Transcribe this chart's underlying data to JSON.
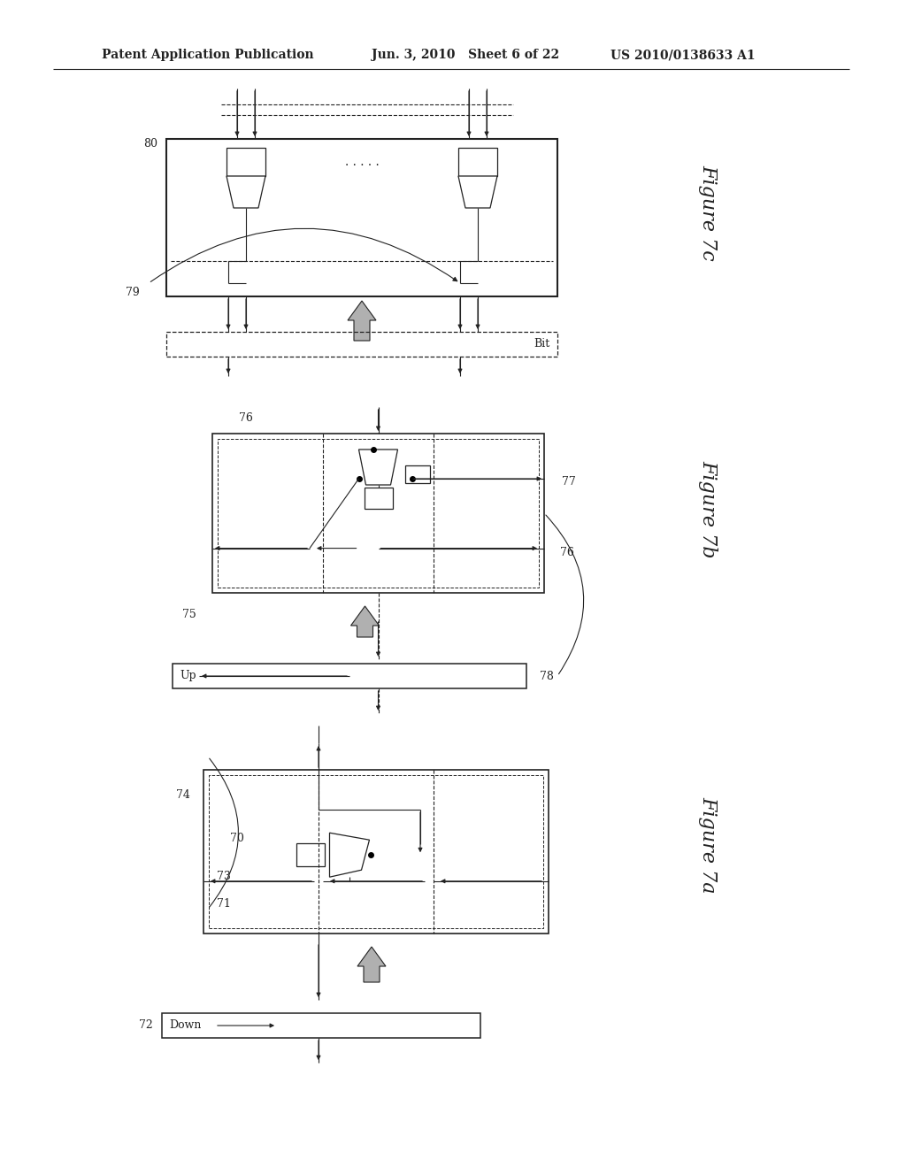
{
  "bg_color": "#ffffff",
  "line_color": "#222222",
  "gray_fill": "#b0b0b0",
  "header": {
    "left": "Patent Application Publication",
    "mid": "Jun. 3, 2010   Sheet 6 of 22",
    "right": "US 2010/0138633 A1"
  }
}
